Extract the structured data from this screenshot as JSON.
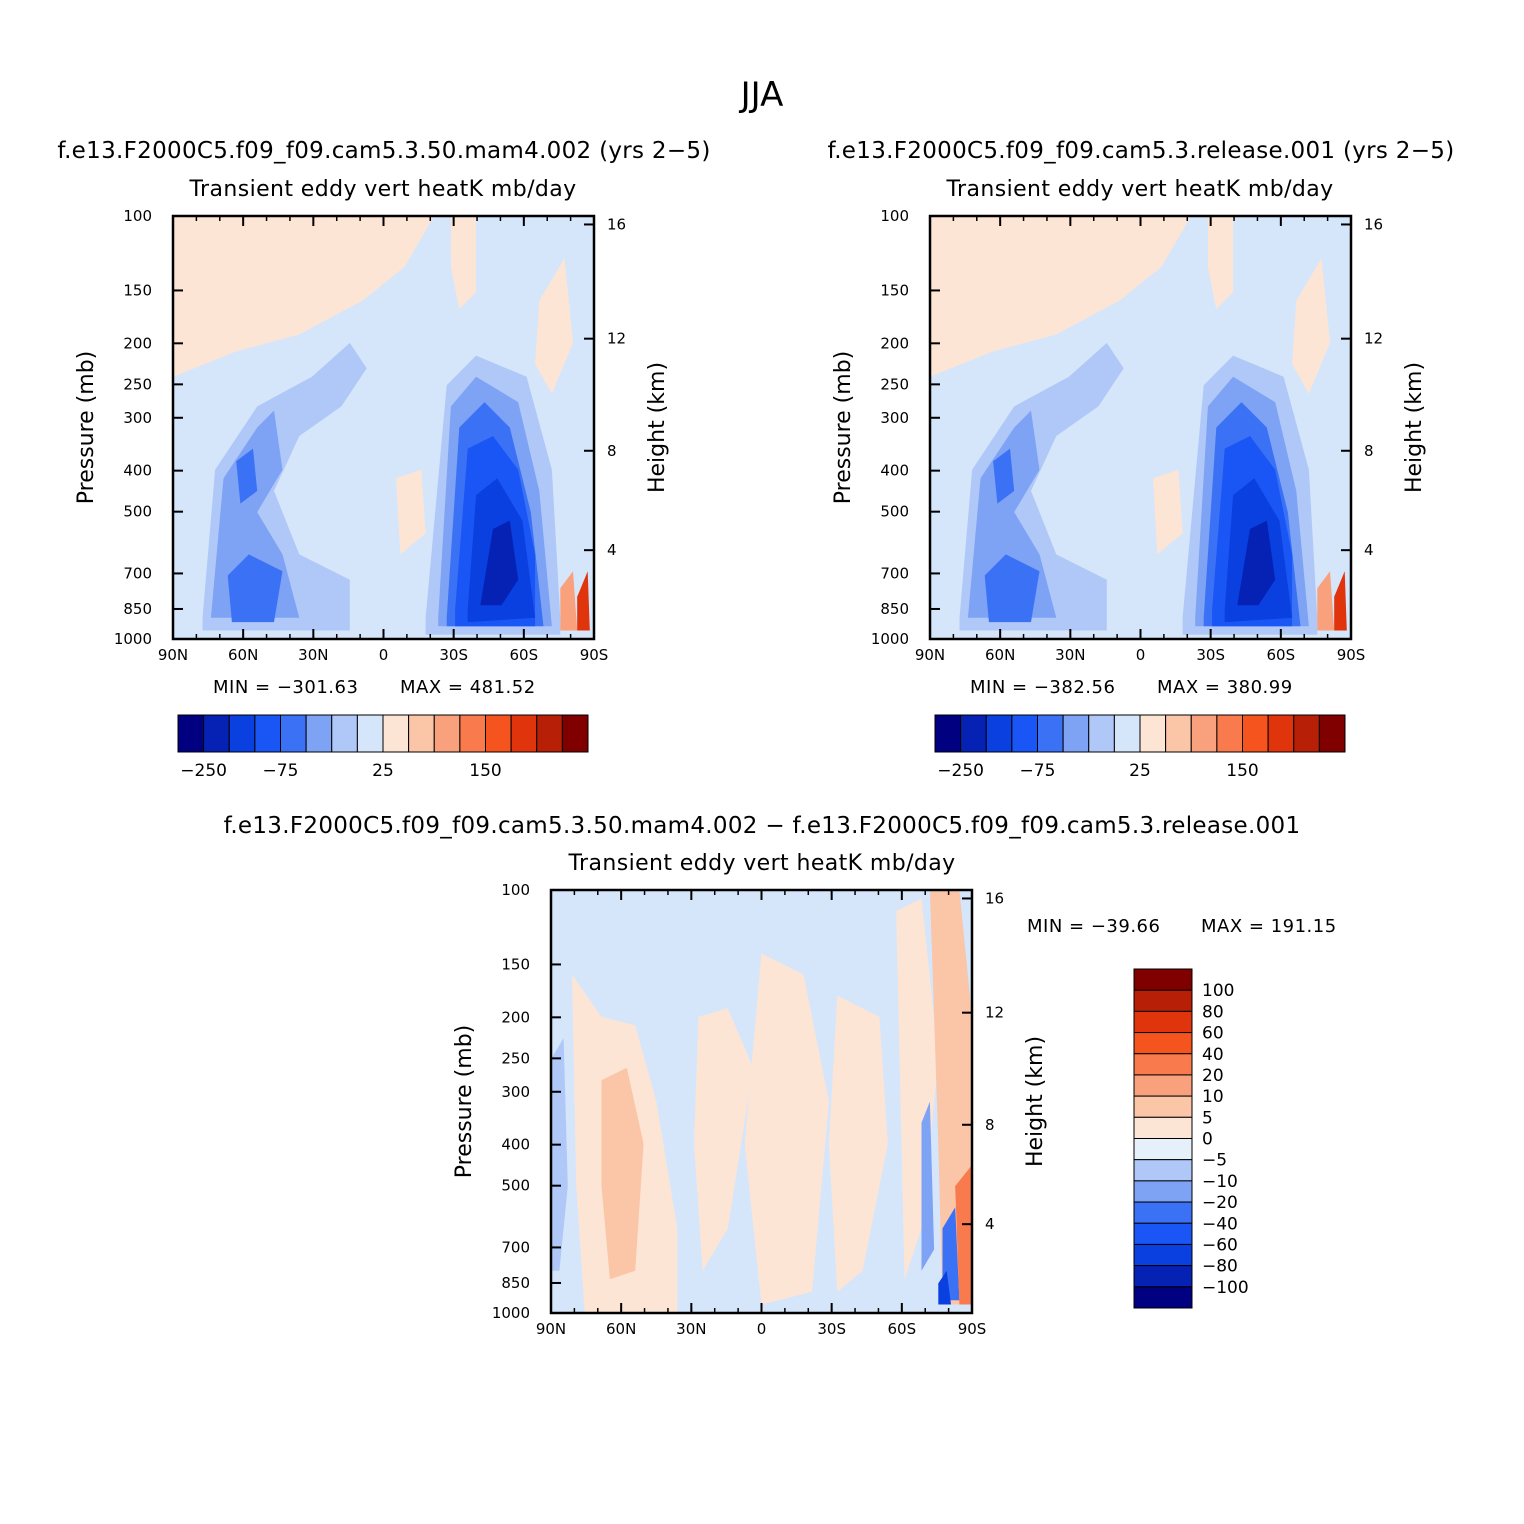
{
  "title": "JJA",
  "case1_title": "f.e13.F2000C5.f09_f09.cam5.3.50.mam4.002 (yrs 2−5)",
  "case2_title": "f.e13.F2000C5.f09_f09.cam5.3.release.001 (yrs 2−5)",
  "diff_title": "f.e13.F2000C5.f09_f09.cam5.3.50.mam4.002 − f.e13.F2000C5.f09_f09.cam5.3.release.001",
  "chart_data": [
    {
      "type": "heatmap",
      "panel": "case1",
      "title": "Transient eddy vert heatK mb/day",
      "ylabel": "Pressure (mb)",
      "y2label": "Height (km)",
      "xticks": [
        "90N",
        "60N",
        "30N",
        "0",
        "30S",
        "60S",
        "90S"
      ],
      "yticks": [
        "100",
        "150",
        "200",
        "250",
        "300",
        "400",
        "500",
        "700",
        "850",
        "1000"
      ],
      "y2ticks": [
        "16",
        "12",
        "8",
        "4"
      ],
      "min_label": "MIN = −301.63",
      "max_label": "MAX = 481.52",
      "min": -301.63,
      "max": 481.52,
      "colorbar_labels": [
        "−250",
        "−75",
        "25",
        "150"
      ],
      "colors": [
        "#000080",
        "#0522b4",
        "#0a3fe0",
        "#1a56f5",
        "#3b72f5",
        "#7ea3f5",
        "#b0c8f8",
        "#d5e6fb",
        "#fde5d6",
        "#fbc5a8",
        "#f9a07d",
        "#f87a4d",
        "#f5541f",
        "#e0340c",
        "#b71f06",
        "#800000"
      ],
      "bg_color": "#d5e6fb"
    },
    {
      "type": "heatmap",
      "panel": "case2",
      "title": "Transient eddy vert heatK mb/day",
      "ylabel": "Pressure (mb)",
      "y2label": "Height (km)",
      "xticks": [
        "90N",
        "60N",
        "30N",
        "0",
        "30S",
        "60S",
        "90S"
      ],
      "yticks": [
        "100",
        "150",
        "200",
        "250",
        "300",
        "400",
        "500",
        "700",
        "850",
        "1000"
      ],
      "y2ticks": [
        "16",
        "12",
        "8",
        "4"
      ],
      "min_label": "MIN = −382.56",
      "max_label": "MAX = 380.99",
      "min": -382.56,
      "max": 380.99,
      "colorbar_labels": [
        "−250",
        "−75",
        "25",
        "150"
      ],
      "colors": [
        "#000080",
        "#0522b4",
        "#0a3fe0",
        "#1a56f5",
        "#3b72f5",
        "#7ea3f5",
        "#b0c8f8",
        "#d5e6fb",
        "#fde5d6",
        "#fbc5a8",
        "#f9a07d",
        "#f87a4d",
        "#f5541f",
        "#e0340c",
        "#b71f06",
        "#800000"
      ],
      "bg_color": "#d5e6fb"
    },
    {
      "type": "heatmap",
      "panel": "difference",
      "title": "Transient eddy vert heatK mb/day",
      "ylabel": "Pressure (mb)",
      "y2label": "Height (km)",
      "xticks": [
        "90N",
        "60N",
        "30N",
        "0",
        "30S",
        "60S",
        "90S"
      ],
      "yticks": [
        "100",
        "150",
        "200",
        "250",
        "300",
        "400",
        "500",
        "700",
        "850",
        "1000"
      ],
      "y2ticks": [
        "16",
        "12",
        "8",
        "4"
      ],
      "min_label": "MIN = −39.66",
      "max_label": "MAX = 191.15",
      "min": -39.66,
      "max": 191.15,
      "colorbar_labels": [
        "100",
        "80",
        "60",
        "40",
        "20",
        "10",
        "5",
        "0",
        "−5",
        "−10",
        "−20",
        "−40",
        "−60",
        "−80",
        "−100"
      ],
      "colors": [
        "#800000",
        "#b71f06",
        "#e0340c",
        "#f5541f",
        "#f87a4d",
        "#f9a07d",
        "#fbc5a8",
        "#fde5d6",
        "#e6f0fb",
        "#b0c8f8",
        "#7ea3f5",
        "#3b72f5",
        "#1a56f5",
        "#0a3fe0",
        "#0522b4",
        "#000080"
      ],
      "bg_color": "#d5e6fb"
    }
  ]
}
